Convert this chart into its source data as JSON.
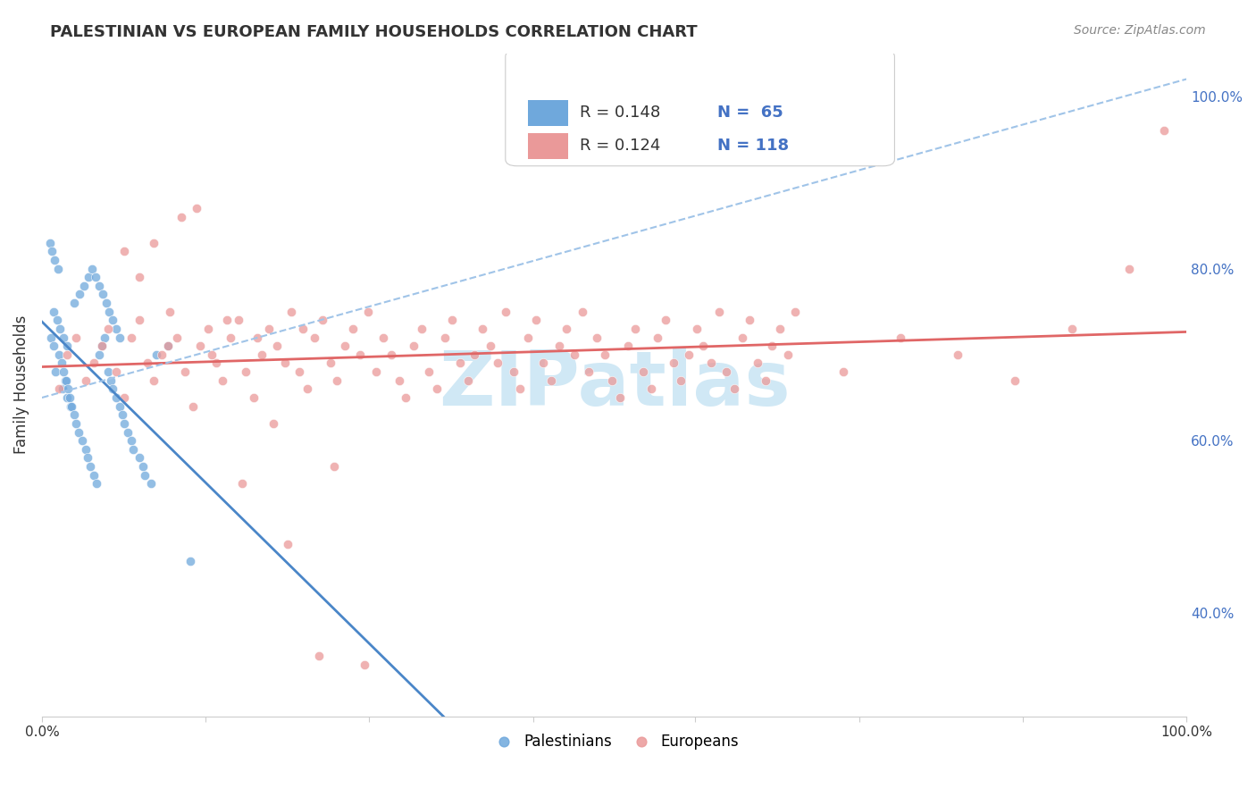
{
  "title": "PALESTINIAN VS EUROPEAN FAMILY HOUSEHOLDS CORRELATION CHART",
  "source": "Source: ZipAtlas.com",
  "ylabel": "Family Households",
  "xlim": [
    0.0,
    1.0
  ],
  "ylim": [
    0.28,
    1.05
  ],
  "ytick_labels": [
    "40.0%",
    "60.0%",
    "80.0%",
    "100.0%"
  ],
  "ytick_values": [
    0.4,
    0.6,
    0.8,
    1.0
  ],
  "xtick_values": [
    0.0,
    0.143,
    0.286,
    0.429,
    0.571,
    0.714,
    0.857,
    1.0
  ],
  "color_palestinian": "#6fa8dc",
  "color_european": "#ea9999",
  "color_trendline_pal": "#4a86c8",
  "color_trendline_eur": "#e06666",
  "color_dashed": "#a0c4e8",
  "watermark_color": "#d0e8f5",
  "palestinians_x": [
    0.012,
    0.018,
    0.02,
    0.022,
    0.025,
    0.008,
    0.01,
    0.015,
    0.017,
    0.019,
    0.021,
    0.023,
    0.024,
    0.026,
    0.028,
    0.03,
    0.032,
    0.035,
    0.038,
    0.04,
    0.042,
    0.045,
    0.048,
    0.05,
    0.052,
    0.055,
    0.058,
    0.06,
    0.062,
    0.065,
    0.068,
    0.07,
    0.072,
    0.075,
    0.078,
    0.08,
    0.085,
    0.088,
    0.09,
    0.095,
    0.01,
    0.013,
    0.016,
    0.019,
    0.022,
    0.028,
    0.033,
    0.037,
    0.041,
    0.044,
    0.047,
    0.05,
    0.053,
    0.056,
    0.059,
    0.062,
    0.065,
    0.068,
    0.11,
    0.1,
    0.007,
    0.009,
    0.011,
    0.014,
    0.13
  ],
  "palestinians_y": [
    0.68,
    0.66,
    0.67,
    0.65,
    0.64,
    0.72,
    0.71,
    0.7,
    0.69,
    0.68,
    0.67,
    0.66,
    0.65,
    0.64,
    0.63,
    0.62,
    0.61,
    0.6,
    0.59,
    0.58,
    0.57,
    0.56,
    0.55,
    0.7,
    0.71,
    0.72,
    0.68,
    0.67,
    0.66,
    0.65,
    0.64,
    0.63,
    0.62,
    0.61,
    0.6,
    0.59,
    0.58,
    0.57,
    0.56,
    0.55,
    0.75,
    0.74,
    0.73,
    0.72,
    0.71,
    0.76,
    0.77,
    0.78,
    0.79,
    0.8,
    0.79,
    0.78,
    0.77,
    0.76,
    0.75,
    0.74,
    0.73,
    0.72,
    0.71,
    0.7,
    0.83,
    0.82,
    0.81,
    0.8,
    0.46
  ],
  "europeans_x": [
    0.015,
    0.022,
    0.03,
    0.038,
    0.045,
    0.052,
    0.058,
    0.065,
    0.072,
    0.078,
    0.085,
    0.092,
    0.098,
    0.105,
    0.112,
    0.118,
    0.125,
    0.132,
    0.138,
    0.145,
    0.152,
    0.158,
    0.165,
    0.172,
    0.178,
    0.185,
    0.192,
    0.198,
    0.205,
    0.212,
    0.218,
    0.225,
    0.232,
    0.238,
    0.245,
    0.252,
    0.258,
    0.265,
    0.272,
    0.278,
    0.285,
    0.292,
    0.298,
    0.305,
    0.312,
    0.318,
    0.325,
    0.332,
    0.338,
    0.345,
    0.352,
    0.358,
    0.365,
    0.372,
    0.378,
    0.385,
    0.392,
    0.398,
    0.405,
    0.412,
    0.418,
    0.425,
    0.432,
    0.438,
    0.445,
    0.452,
    0.458,
    0.465,
    0.472,
    0.478,
    0.485,
    0.492,
    0.498,
    0.505,
    0.512,
    0.518,
    0.525,
    0.532,
    0.538,
    0.545,
    0.552,
    0.558,
    0.565,
    0.572,
    0.578,
    0.585,
    0.592,
    0.598,
    0.605,
    0.612,
    0.618,
    0.625,
    0.632,
    0.638,
    0.645,
    0.652,
    0.658,
    0.7,
    0.75,
    0.8,
    0.85,
    0.9,
    0.95,
    0.98,
    0.072,
    0.085,
    0.098,
    0.11,
    0.122,
    0.135,
    0.148,
    0.162,
    0.175,
    0.188,
    0.202,
    0.215,
    0.228,
    0.242,
    0.255,
    0.282
  ],
  "europeans_y": [
    0.66,
    0.7,
    0.72,
    0.67,
    0.69,
    0.71,
    0.73,
    0.68,
    0.65,
    0.72,
    0.74,
    0.69,
    0.67,
    0.7,
    0.75,
    0.72,
    0.68,
    0.64,
    0.71,
    0.73,
    0.69,
    0.67,
    0.72,
    0.74,
    0.68,
    0.65,
    0.7,
    0.73,
    0.71,
    0.69,
    0.75,
    0.68,
    0.66,
    0.72,
    0.74,
    0.69,
    0.67,
    0.71,
    0.73,
    0.7,
    0.75,
    0.68,
    0.72,
    0.7,
    0.67,
    0.65,
    0.71,
    0.73,
    0.68,
    0.66,
    0.72,
    0.74,
    0.69,
    0.67,
    0.7,
    0.73,
    0.71,
    0.69,
    0.75,
    0.68,
    0.66,
    0.72,
    0.74,
    0.69,
    0.67,
    0.71,
    0.73,
    0.7,
    0.75,
    0.68,
    0.72,
    0.7,
    0.67,
    0.65,
    0.71,
    0.73,
    0.68,
    0.66,
    0.72,
    0.74,
    0.69,
    0.67,
    0.7,
    0.73,
    0.71,
    0.69,
    0.75,
    0.68,
    0.66,
    0.72,
    0.74,
    0.69,
    0.67,
    0.71,
    0.73,
    0.7,
    0.75,
    0.68,
    0.72,
    0.7,
    0.67,
    0.73,
    0.8,
    0.96,
    0.82,
    0.79,
    0.83,
    0.71,
    0.86,
    0.87,
    0.7,
    0.74,
    0.55,
    0.72,
    0.62,
    0.48,
    0.73,
    0.35,
    0.57,
    0.34
  ],
  "background_color": "#ffffff",
  "grid_color": "#e0e0e0"
}
